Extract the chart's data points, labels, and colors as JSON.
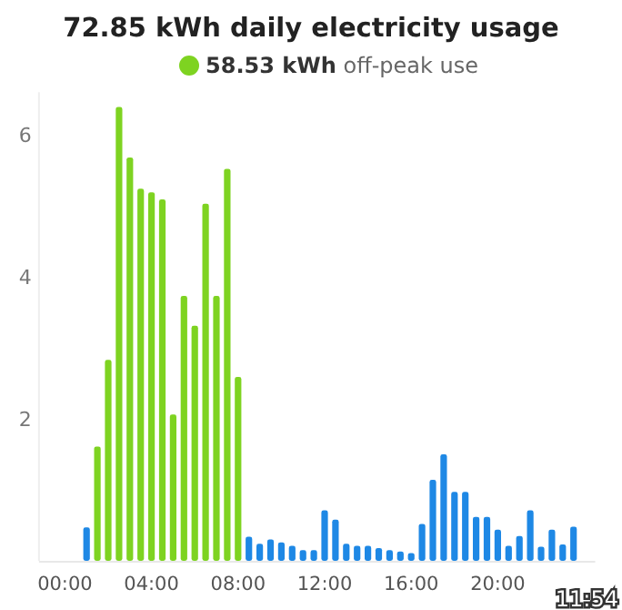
{
  "chart_data": {
    "type": "bar",
    "title": "72.85 kWh daily electricity usage",
    "x": [
      1,
      1.5,
      2,
      2.5,
      3,
      3.5,
      4,
      4.5,
      5,
      5.5,
      6,
      6.5,
      7,
      7.5,
      8,
      8.5,
      9,
      9.5,
      10,
      10.5,
      11,
      11.5,
      12,
      12.5,
      13,
      13.5,
      14,
      14.5,
      15,
      15.5,
      16,
      16.5,
      17,
      17.5,
      18,
      18.5,
      19,
      19.5,
      20,
      20.5,
      21,
      21.5,
      22,
      22.5,
      23,
      23.5
    ],
    "series": [
      {
        "name": "58.53 kWh off-peak use",
        "color": "#7ed321",
        "values": [
          null,
          1.61,
          2.83,
          6.39,
          5.68,
          5.24,
          5.19,
          5.09,
          2.06,
          3.73,
          3.31,
          5.03,
          3.73,
          5.52,
          2.59,
          null,
          null,
          null,
          null,
          null,
          null,
          null,
          null,
          null,
          null,
          null,
          null,
          null,
          null,
          null,
          null,
          null,
          null,
          null,
          null,
          null,
          null,
          null,
          null,
          null,
          null,
          null,
          null,
          null,
          null,
          null
        ]
      },
      {
        "color": "#1e88e5",
        "values": [
          0.47,
          null,
          null,
          null,
          null,
          null,
          null,
          null,
          null,
          null,
          null,
          null,
          null,
          null,
          null,
          0.34,
          0.24,
          0.3,
          0.26,
          0.21,
          0.15,
          0.15,
          0.71,
          0.58,
          0.24,
          0.21,
          0.21,
          0.18,
          0.15,
          0.13,
          0.11,
          0.52,
          1.14,
          1.5,
          0.97,
          0.97,
          0.62,
          0.62,
          0.44,
          0.21,
          0.35,
          0.71,
          0.2,
          0.44,
          0.23,
          0.48
        ]
      }
    ],
    "xticks": [
      {
        "value": 0,
        "label": "00:00"
      },
      {
        "value": 4,
        "label": "04:00"
      },
      {
        "value": 8,
        "label": "08:00"
      },
      {
        "value": 12,
        "label": "12:00"
      },
      {
        "value": 16,
        "label": "16:00"
      },
      {
        "value": 20,
        "label": "20:00"
      }
    ],
    "xlim": [
      -1.2,
      24.5
    ],
    "ylim": [
      0,
      6.6
    ],
    "yticks": [
      2,
      4,
      6
    ],
    "grid": false,
    "legend": "top",
    "annotations": [
      "11:54"
    ]
  }
}
